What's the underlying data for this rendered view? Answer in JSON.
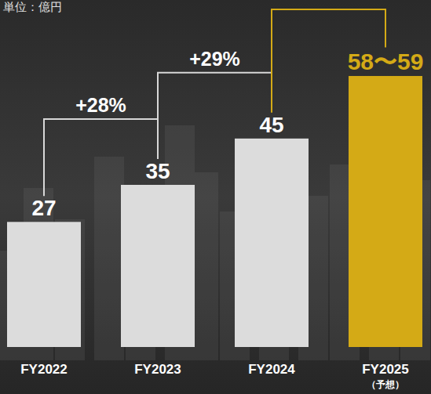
{
  "chart_data": {
    "type": "bar",
    "subtitle": "単位：億円",
    "categories": [
      "FY2022",
      "FY2023",
      "FY2024",
      "FY2025（予想）"
    ],
    "values": [
      27,
      35,
      45,
      58.5
    ],
    "value_labels": [
      "27",
      "35",
      "45",
      "58〜59"
    ],
    "colors": [
      "#dcdcdc",
      "#dcdcdc",
      "#dcdcdc",
      "#d4aa16"
    ],
    "annotations": [
      "+28%",
      "+29%"
    ],
    "ylim": [
      0,
      70
    ],
    "data_labels": true,
    "tick_labels": "x",
    "grid": false
  }
}
